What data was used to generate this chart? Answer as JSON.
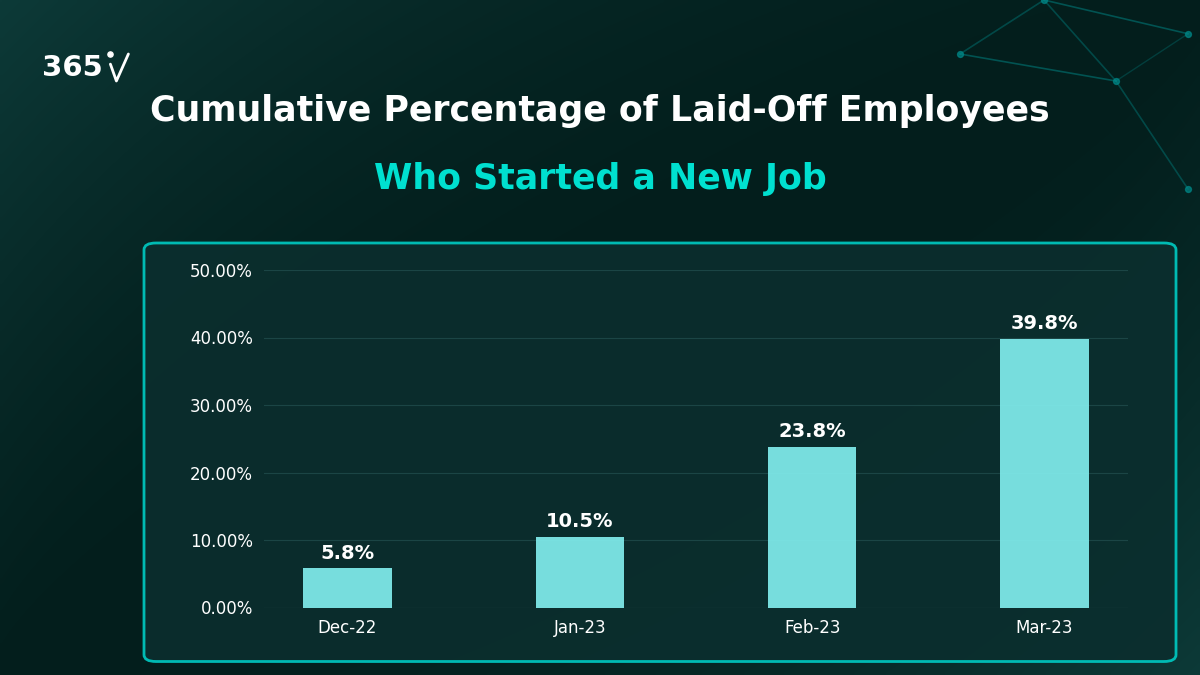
{
  "title_line1": "Cumulative Percentage of Laid-Off Employees",
  "title_line2": "Who Started a New Job",
  "categories": [
    "Dec-22",
    "Jan-23",
    "Feb-23",
    "Mar-23"
  ],
  "values": [
    5.8,
    10.5,
    23.8,
    39.8
  ],
  "bar_color": "#7ee8e8",
  "background_color": "#052422",
  "panel_bg_color": "#0b2e2e",
  "panel_edge_color": "#00c8c0",
  "title_color": "#ffffff",
  "subtitle_color": "#00e0d0",
  "tick_label_color": "#ffffff",
  "bar_label_color": "#ffffff",
  "grid_color": "#1e4848",
  "ylim": [
    0,
    50
  ],
  "yticks": [
    0,
    10,
    20,
    30,
    40,
    50
  ],
  "ytick_labels": [
    "0.00%",
    "10.00%",
    "20.00%",
    "30.00%",
    "40.00%",
    "50.00%"
  ],
  "title_fontsize": 25,
  "subtitle_fontsize": 25,
  "tick_fontsize": 12,
  "bar_label_fontsize": 14,
  "logo_fontsize": 21,
  "network_color": "#008888",
  "bar_width": 0.38
}
